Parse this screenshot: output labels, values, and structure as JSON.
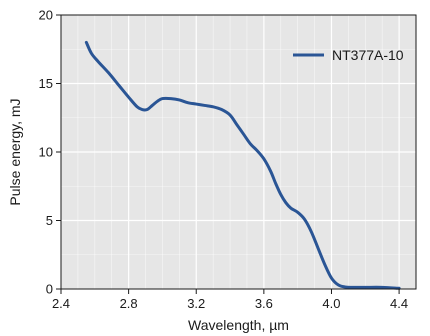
{
  "chart_data": {
    "type": "line",
    "title": "",
    "xlabel": "Wavelength, µm",
    "ylabel": "Pulse energy, mJ",
    "xlim": [
      2.4,
      4.5
    ],
    "ylim": [
      0,
      20
    ],
    "xticks": [
      2.4,
      2.8,
      3.2,
      3.6,
      4.0,
      4.4
    ],
    "xtick_labels": [
      "2.4",
      "2.8",
      "3.2",
      "3.6",
      "4.0",
      "4.4"
    ],
    "yticks": [
      0,
      5,
      10,
      15,
      20
    ],
    "ytick_labels": [
      "0",
      "5",
      "10",
      "15",
      "20"
    ],
    "x_minor_step": 0.1,
    "y_minor_step": 2.5,
    "grid": true,
    "legend_position": "top-right",
    "plot_background": "#e6e6e6",
    "grid_color": "#ffffff",
    "series": [
      {
        "name": "NT377A-10",
        "color": "#2a5595",
        "x": [
          2.55,
          2.58,
          2.62,
          2.68,
          2.74,
          2.8,
          2.85,
          2.88,
          2.91,
          2.94,
          2.97,
          3.0,
          3.05,
          3.1,
          3.15,
          3.2,
          3.25,
          3.3,
          3.35,
          3.4,
          3.44,
          3.48,
          3.52,
          3.56,
          3.6,
          3.64,
          3.67,
          3.7,
          3.73,
          3.76,
          3.8,
          3.84,
          3.88,
          3.92,
          3.96,
          4.0,
          4.04,
          4.08,
          4.12,
          4.2,
          4.3,
          4.4
        ],
        "y": [
          18.0,
          17.2,
          16.6,
          15.8,
          14.9,
          14.0,
          13.3,
          13.1,
          13.1,
          13.4,
          13.7,
          13.9,
          13.9,
          13.8,
          13.6,
          13.5,
          13.4,
          13.3,
          13.1,
          12.7,
          12.0,
          11.3,
          10.6,
          10.1,
          9.5,
          8.6,
          7.7,
          6.9,
          6.3,
          5.9,
          5.6,
          5.1,
          4.2,
          3.0,
          1.8,
          0.8,
          0.3,
          0.15,
          0.12,
          0.12,
          0.12,
          0.05
        ]
      }
    ]
  }
}
